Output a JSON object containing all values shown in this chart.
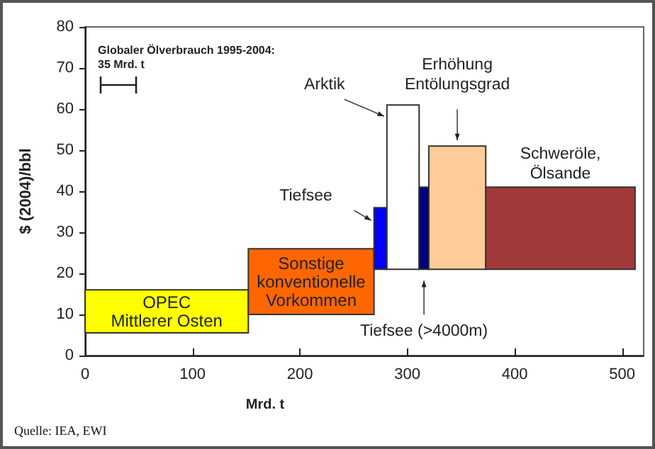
{
  "chart_data": {
    "type": "histogram",
    "xlabel": "Mrd. t",
    "ylabel": "$ (2004)/bbl",
    "categories": [
      "OPEC\nMittlerer Osten",
      "Sonstige\nkonventionelle\nVorkommen",
      "Tiefsee",
      "Arktik",
      "Tiefsee (>4000m)",
      "Erhöhung\nEntölungsgrad",
      "Schweröle,\nÖlsande"
    ],
    "bins": [
      0,
      152,
      269,
      281,
      311,
      320,
      373,
      512
    ],
    "base": [
      5.5,
      10,
      21,
      21,
      21,
      21,
      21
    ],
    "values": [
      10.5,
      16,
      15,
      40,
      20,
      30,
      20
    ],
    "colors": [
      "#ffff00",
      "#ff6600",
      "#0000ff",
      "#ffffff",
      "#000080",
      "#ffcc99",
      "#a33a3a"
    ],
    "xlim": [
      0,
      520
    ],
    "xticks": [
      0,
      100,
      200,
      300,
      400,
      500
    ],
    "ylim": [
      0,
      80
    ],
    "yticks": [
      0,
      10,
      20,
      30,
      40,
      50,
      60,
      70,
      80
    ],
    "grid": false,
    "annotations": [
      "Globaler Ölverbrauch 1995-2004:\n35 Mrd. t",
      "Quelle: IEA, EWI"
    ]
  }
}
